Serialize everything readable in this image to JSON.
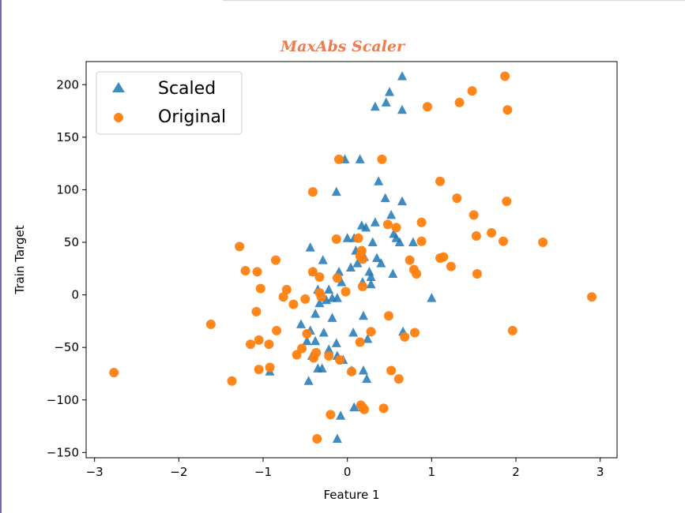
{
  "chart_data": {
    "type": "scatter",
    "title": "MaxAbs Scaler",
    "xlabel": "Feature 1",
    "ylabel": "Train Target",
    "xlim": [
      -3.1,
      3.2
    ],
    "ylim": [
      -155,
      222
    ],
    "xticks": [
      -3,
      -2,
      -1,
      0,
      1,
      2,
      3
    ],
    "yticks": [
      -150,
      -100,
      -50,
      0,
      50,
      100,
      150,
      200
    ],
    "legend_position": "top-left",
    "series": [
      {
        "name": "Scaled",
        "marker": "triangle",
        "color": "#1f77b4",
        "points": [
          [
            0.65,
            208
          ],
          [
            0.5,
            193
          ],
          [
            0.46,
            183
          ],
          [
            0.33,
            179
          ],
          [
            0.65,
            176
          ],
          [
            -0.03,
            129
          ],
          [
            0.15,
            129
          ],
          [
            0.37,
            108
          ],
          [
            -0.13,
            98
          ],
          [
            0.45,
            92
          ],
          [
            0.65,
            89
          ],
          [
            0.52,
            76
          ],
          [
            0.33,
            69
          ],
          [
            0.17,
            66
          ],
          [
            0.22,
            64
          ],
          [
            0.55,
            58
          ],
          [
            0.58,
            54
          ],
          [
            0.62,
            50
          ],
          [
            0.0,
            54
          ],
          [
            0.08,
            54
          ],
          [
            0.3,
            50
          ],
          [
            0.1,
            42
          ],
          [
            0.2,
            36
          ],
          [
            0.35,
            35
          ],
          [
            0.4,
            30
          ],
          [
            0.12,
            30
          ],
          [
            0.04,
            26
          ],
          [
            0.26,
            22
          ],
          [
            0.28,
            17
          ],
          [
            0.54,
            20
          ],
          [
            -0.44,
            45
          ],
          [
            -0.29,
            33
          ],
          [
            -0.1,
            22
          ],
          [
            -0.4,
            22
          ],
          [
            -0.35,
            5
          ],
          [
            -0.22,
            5
          ],
          [
            -0.25,
            -5
          ],
          [
            -0.33,
            -8
          ],
          [
            -0.18,
            -3
          ],
          [
            -0.12,
            -3
          ],
          [
            0.18,
            12
          ],
          [
            0.28,
            10
          ],
          [
            0.78,
            50
          ],
          [
            1.0,
            -3
          ],
          [
            -0.07,
            12
          ],
          [
            -0.38,
            -18
          ],
          [
            -0.18,
            -22
          ],
          [
            -0.55,
            -28
          ],
          [
            -0.44,
            -34
          ],
          [
            -0.28,
            -36
          ],
          [
            0.19,
            -20
          ],
          [
            0.07,
            -36
          ],
          [
            0.24,
            -42
          ],
          [
            -0.38,
            -44
          ],
          [
            -0.48,
            -44
          ],
          [
            -0.13,
            -46
          ],
          [
            -0.22,
            -52
          ],
          [
            -0.12,
            -58
          ],
          [
            -0.42,
            -58
          ],
          [
            -0.05,
            -62
          ],
          [
            -0.35,
            -70
          ],
          [
            -0.3,
            -70
          ],
          [
            0.05,
            -72
          ],
          [
            0.19,
            -72
          ],
          [
            -0.46,
            -82
          ],
          [
            0.23,
            -80
          ],
          [
            0.08,
            -107
          ],
          [
            -0.08,
            -115
          ],
          [
            0.18,
            -107
          ],
          [
            -0.12,
            -137
          ],
          [
            0.66,
            -35
          ],
          [
            -0.92,
            -73
          ]
        ]
      },
      {
        "name": "Original",
        "marker": "circle",
        "color": "#ff7f0e",
        "points": [
          [
            1.87,
            208
          ],
          [
            1.48,
            194
          ],
          [
            1.33,
            183
          ],
          [
            0.95,
            179
          ],
          [
            1.9,
            176
          ],
          [
            -0.1,
            129
          ],
          [
            0.41,
            129
          ],
          [
            1.1,
            108
          ],
          [
            -0.41,
            98
          ],
          [
            1.3,
            92
          ],
          [
            1.89,
            89
          ],
          [
            1.5,
            76
          ],
          [
            0.88,
            69
          ],
          [
            1.71,
            59
          ],
          [
            1.53,
            56
          ],
          [
            0.58,
            64
          ],
          [
            0.48,
            67
          ],
          [
            0.88,
            51
          ],
          [
            1.85,
            51
          ],
          [
            2.32,
            50
          ],
          [
            0.13,
            54
          ],
          [
            -0.13,
            53
          ],
          [
            0.17,
            42
          ],
          [
            0.15,
            37
          ],
          [
            0.18,
            34
          ],
          [
            0.74,
            33
          ],
          [
            1.1,
            35
          ],
          [
            1.14,
            36
          ],
          [
            1.23,
            27
          ],
          [
            0.79,
            24
          ],
          [
            0.82,
            20
          ],
          [
            1.54,
            20
          ],
          [
            -1.28,
            46
          ],
          [
            -1.21,
            23
          ],
          [
            -1.07,
            22
          ],
          [
            -0.85,
            33
          ],
          [
            -0.41,
            22
          ],
          [
            -0.33,
            17
          ],
          [
            -0.12,
            16
          ],
          [
            -0.02,
            3
          ],
          [
            -0.31,
            -2
          ],
          [
            -0.33,
            2
          ],
          [
            -0.72,
            5
          ],
          [
            -0.76,
            -2
          ],
          [
            -0.5,
            -4
          ],
          [
            -0.64,
            -9
          ],
          [
            -1.03,
            6
          ],
          [
            0.18,
            8
          ],
          [
            2.9,
            -2
          ],
          [
            -1.08,
            -16
          ],
          [
            -1.62,
            -28
          ],
          [
            -0.84,
            -34
          ],
          [
            -0.48,
            -37
          ],
          [
            0.28,
            -35
          ],
          [
            0.49,
            -20
          ],
          [
            1.96,
            -34
          ],
          [
            0.8,
            -36
          ],
          [
            0.68,
            -40
          ],
          [
            0.15,
            -45
          ],
          [
            -1.05,
            -43
          ],
          [
            -0.93,
            -47
          ],
          [
            -1.15,
            -47
          ],
          [
            -0.54,
            -51
          ],
          [
            -0.37,
            -55
          ],
          [
            -0.6,
            -57
          ],
          [
            -0.4,
            -60
          ],
          [
            -0.22,
            -58
          ],
          [
            -0.09,
            -62
          ],
          [
            0.05,
            -73
          ],
          [
            0.52,
            -72
          ],
          [
            -1.05,
            -71
          ],
          [
            -0.92,
            -69
          ],
          [
            0.61,
            -80
          ],
          [
            -1.37,
            -82
          ],
          [
            -2.77,
            -74
          ],
          [
            0.18,
            -107
          ],
          [
            0.2,
            -109
          ],
          [
            0.43,
            -108
          ],
          [
            -0.2,
            -114
          ],
          [
            -0.36,
            -137
          ],
          [
            0.16,
            -105
          ]
        ]
      }
    ]
  }
}
